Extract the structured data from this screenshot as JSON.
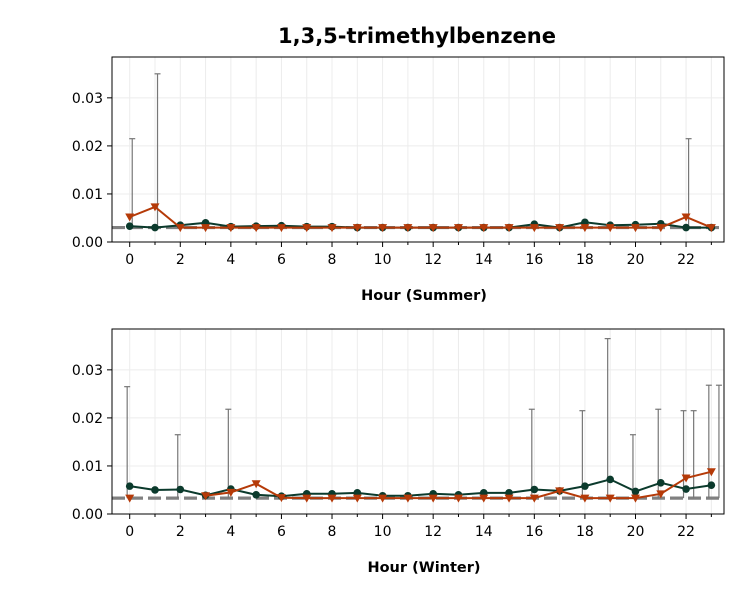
{
  "title": "1,3,5-trimethylbenzene",
  "colors": {
    "series_a": "#0b3a2c",
    "series_b": "#b53a08",
    "errorbar": "#777777",
    "baseline": "#808080"
  },
  "chart_data": [
    {
      "type": "line",
      "xlabel": "Hour (Summer)",
      "ylabel": "",
      "xlim": [
        -0.7,
        23.5
      ],
      "ylim": [
        0,
        0.0385
      ],
      "x_ticks": [
        0,
        2,
        4,
        6,
        8,
        10,
        12,
        14,
        16,
        18,
        20,
        22
      ],
      "y_ticks": [
        0.0,
        0.01,
        0.02,
        0.03
      ],
      "y_tick_labels": [
        "0.00",
        "0.01",
        "0.02",
        "0.03"
      ],
      "grid": true,
      "baseline": 0.003,
      "x": [
        0,
        1,
        2,
        3,
        4,
        5,
        6,
        7,
        8,
        9,
        10,
        11,
        12,
        13,
        14,
        15,
        16,
        17,
        18,
        19,
        20,
        21,
        22,
        23
      ],
      "series": [
        {
          "marker": "circle",
          "values": [
            0.0033,
            0.003,
            0.0035,
            0.004,
            0.0032,
            0.0033,
            0.0034,
            0.0032,
            0.0032,
            0.003,
            0.003,
            0.003,
            0.003,
            0.003,
            0.003,
            0.003,
            0.0037,
            0.003,
            0.0041,
            0.0035,
            0.0036,
            0.0038,
            0.003,
            0.003
          ]
        },
        {
          "marker": "triangle-down",
          "values": [
            0.0052,
            0.0073,
            0.003,
            0.003,
            0.003,
            0.003,
            0.003,
            0.003,
            0.003,
            0.003,
            0.003,
            0.003,
            0.003,
            0.003,
            0.003,
            0.003,
            0.003,
            0.003,
            0.003,
            0.003,
            0.003,
            0.003,
            0.0052,
            0.003
          ]
        }
      ],
      "errorbars": [
        {
          "x": 0.1,
          "top": 0.0215
        },
        {
          "x": 1.1,
          "top": 0.035
        },
        {
          "x": 22.1,
          "top": 0.0215
        }
      ]
    },
    {
      "type": "line",
      "xlabel": "Hour (Winter)",
      "ylabel": "",
      "xlim": [
        -0.7,
        23.5
      ],
      "ylim": [
        0,
        0.0385
      ],
      "x_ticks": [
        0,
        2,
        4,
        6,
        8,
        10,
        12,
        14,
        16,
        18,
        20,
        22
      ],
      "y_ticks": [
        0.0,
        0.01,
        0.02,
        0.03
      ],
      "y_tick_labels": [
        "0.00",
        "0.01",
        "0.02",
        "0.03"
      ],
      "grid": true,
      "baseline": 0.0033,
      "x": [
        0,
        1,
        2,
        3,
        4,
        5,
        6,
        7,
        8,
        9,
        10,
        11,
        12,
        13,
        14,
        15,
        16,
        17,
        18,
        19,
        20,
        21,
        22,
        23
      ],
      "series": [
        {
          "marker": "circle",
          "values": [
            0.0058,
            0.005,
            0.0051,
            0.0039,
            0.0052,
            0.004,
            0.0037,
            0.0042,
            0.0042,
            0.0044,
            0.0038,
            0.0038,
            0.0042,
            0.004,
            0.0044,
            0.0044,
            0.0051,
            0.0048,
            0.0058,
            0.0072,
            0.0047,
            0.0065,
            0.0052,
            0.006
          ]
        },
        {
          "marker": "triangle-down",
          "values": [
            0.0033,
            null,
            null,
            0.0038,
            0.0045,
            0.0063,
            0.0034,
            0.0033,
            0.0033,
            0.0033,
            0.0033,
            0.0033,
            0.0033,
            0.0033,
            0.0033,
            0.0033,
            0.0033,
            0.0048,
            0.0033,
            0.0033,
            0.0033,
            0.0042,
            0.0075,
            0.0088
          ]
        }
      ],
      "errorbars": [
        {
          "x": -0.1,
          "top": 0.0265
        },
        {
          "x": 1.9,
          "top": 0.0165
        },
        {
          "x": 3.9,
          "top": 0.0218
        },
        {
          "x": 15.9,
          "top": 0.0218
        },
        {
          "x": 17.9,
          "top": 0.0215
        },
        {
          "x": 18.9,
          "top": 0.0365
        },
        {
          "x": 19.9,
          "top": 0.0165
        },
        {
          "x": 20.9,
          "top": 0.0218
        },
        {
          "x": 21.9,
          "top": 0.0215
        },
        {
          "x": 22.3,
          "top": 0.0215
        },
        {
          "x": 22.9,
          "top": 0.0268
        },
        {
          "x": 23.3,
          "top": 0.0268
        }
      ]
    }
  ]
}
